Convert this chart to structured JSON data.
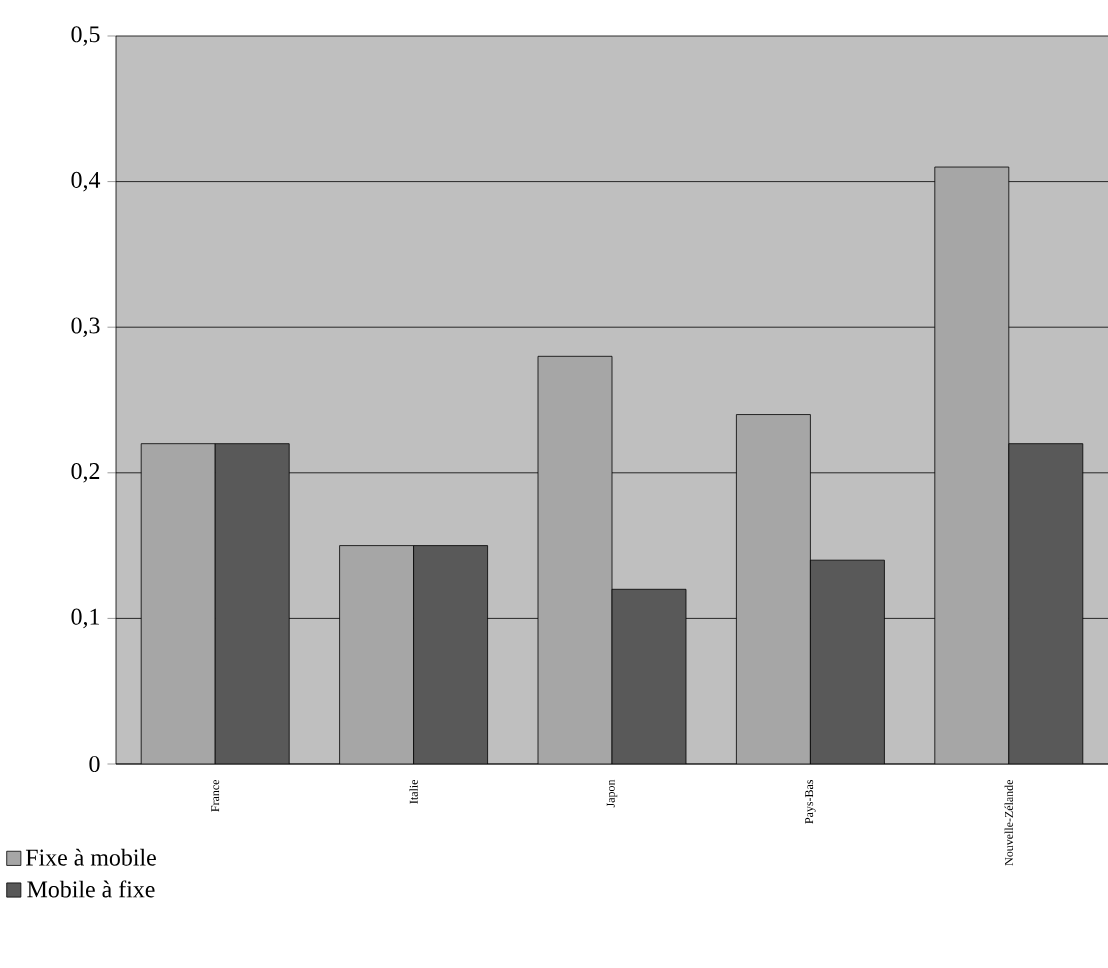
{
  "chart_data": {
    "type": "bar",
    "categories": [
      "France",
      "Italie",
      "Japon",
      "Pays-Bas",
      "Nouvelle-Zélande"
    ],
    "series": [
      {
        "name": "Fixe à mobile",
        "color": "#a6a6a6",
        "values": [
          0.22,
          0.15,
          0.28,
          0.24,
          0.41
        ]
      },
      {
        "name": "Mobile à fixe",
        "color": "#595959",
        "values": [
          0.22,
          0.15,
          0.12,
          0.14,
          0.22
        ]
      }
    ],
    "ylim": [
      0,
      0.5
    ],
    "yticks": [
      0,
      {
        "value": 0.1,
        "label": "0,1"
      },
      {
        "value": 0.2,
        "label": "0,2"
      },
      {
        "value": 0.3,
        "label": "0,3"
      },
      {
        "value": 0.4,
        "label": "0,4"
      },
      {
        "value": 0.5,
        "label": "0,5"
      }
    ],
    "grid": "y",
    "legend": "bottom left"
  }
}
